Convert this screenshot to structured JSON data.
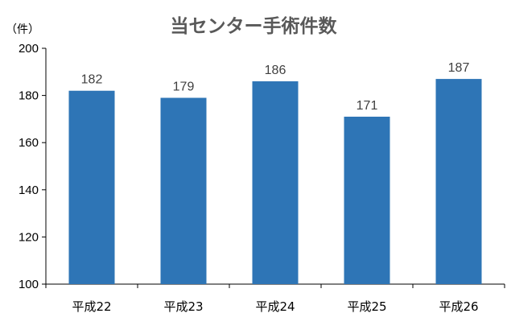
{
  "chart_data": {
    "type": "bar",
    "title": "当センター手術件数",
    "unit_label": "（件）",
    "categories": [
      "平成22",
      "平成23",
      "平成24",
      "平成25",
      "平成26"
    ],
    "series": [
      {
        "values": [
          182,
          179,
          186,
          171,
          187
        ]
      }
    ],
    "ylim": [
      100,
      200
    ],
    "yticks": [
      100,
      120,
      140,
      160,
      180,
      200
    ],
    "grid": false,
    "legend": "none",
    "data_labels": true,
    "colors": {
      "bar": "#2E75B6",
      "title": "#595959",
      "data_label": "#404040",
      "axis": "#000000"
    }
  }
}
